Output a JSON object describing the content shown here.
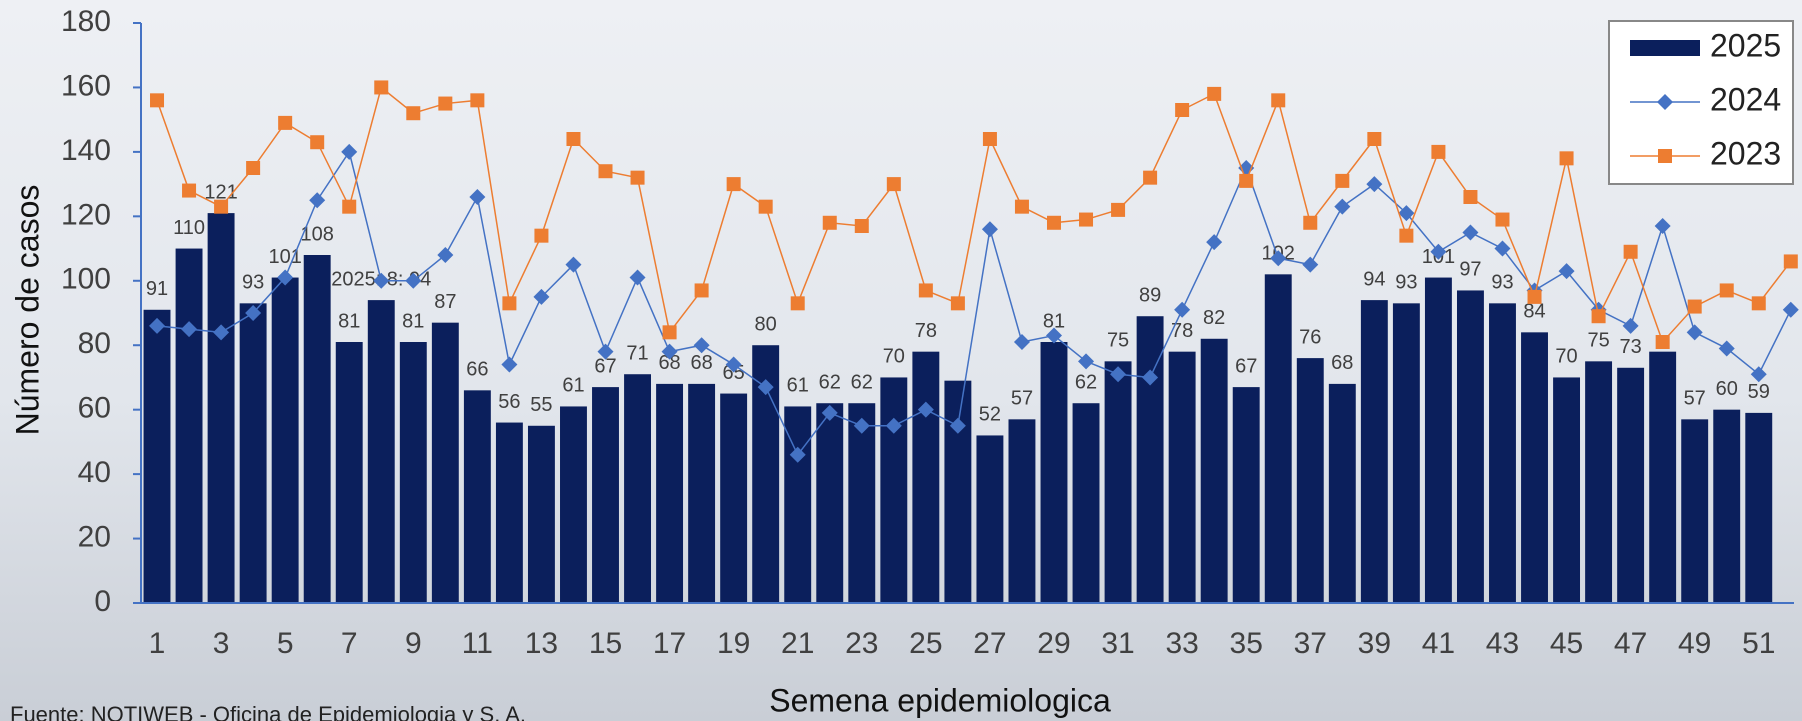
{
  "chart_data": {
    "type": "bar",
    "x_label": "Semena epidemiologica",
    "y_label": "Número de casos",
    "source": "Fuente: NOTIWEB - Oficina de Epidemiologia y S. A.",
    "x": [
      1,
      2,
      3,
      4,
      5,
      6,
      7,
      8,
      9,
      10,
      11,
      12,
      13,
      14,
      15,
      16,
      17,
      18,
      19,
      20,
      21,
      22,
      23,
      24,
      25,
      26,
      27,
      28,
      29,
      30,
      31,
      32,
      33,
      34,
      35,
      36,
      37,
      38,
      39,
      40,
      41,
      42,
      43,
      44,
      45,
      46,
      47,
      48,
      49,
      50,
      51,
      52
    ],
    "xlim": [
      0.5,
      52.1
    ],
    "xticks": [
      1,
      3,
      5,
      7,
      9,
      11,
      13,
      15,
      17,
      19,
      21,
      23,
      25,
      27,
      29,
      31,
      33,
      35,
      37,
      39,
      41,
      43,
      45,
      47,
      49,
      51
    ],
    "ylim": [
      0,
      180
    ],
    "yticks": [
      0,
      20,
      40,
      60,
      80,
      100,
      120,
      140,
      160,
      180
    ],
    "grid": false,
    "legend": "top-right",
    "series": [
      {
        "name": "2025",
        "type": "bar",
        "color": "#0b1f5c",
        "values": [
          91,
          110,
          121,
          93,
          101,
          108,
          81,
          94,
          81,
          87,
          66,
          56,
          55,
          61,
          67,
          71,
          68,
          68,
          65,
          80,
          61,
          62,
          62,
          70,
          78,
          69,
          52,
          57,
          81,
          62,
          75,
          89,
          78,
          82,
          67,
          102,
          76,
          68,
          94,
          93,
          101,
          97,
          93,
          84,
          70,
          75,
          73,
          78,
          57,
          60,
          59,
          null
        ],
        "value_labels": [
          "91",
          "110",
          "121",
          "93",
          "101",
          "108",
          "81",
          "2025: 8: 94",
          "81",
          "87",
          "66",
          "56",
          "55",
          "61",
          "67",
          "71",
          "68",
          "68",
          "65",
          "80",
          "61",
          "62",
          "62",
          "70",
          "78",
          null,
          "52",
          "57",
          "81",
          "62",
          "75",
          "89",
          "78",
          "82",
          "67",
          "102",
          "76",
          "68",
          "94",
          "93",
          "101",
          "97",
          "93",
          "84",
          "70",
          "75",
          "73",
          null,
          "57",
          "60",
          "59",
          null
        ]
      },
      {
        "name": "2024",
        "type": "line",
        "color": "#4472c4",
        "marker": "diamond",
        "values": [
          86,
          85,
          84,
          90,
          101,
          125,
          140,
          100,
          100,
          108,
          126,
          74,
          95,
          105,
          78,
          101,
          78,
          80,
          74,
          67,
          46,
          59,
          55,
          55,
          60,
          55,
          116,
          81,
          83,
          75,
          71,
          70,
          91,
          112,
          135,
          107,
          105,
          123,
          130,
          121,
          109,
          115,
          110,
          97,
          103,
          91,
          86,
          117,
          84,
          79,
          71,
          91
        ]
      },
      {
        "name": "2023",
        "type": "line",
        "color": "#ed7d31",
        "marker": "square",
        "values": [
          156,
          128,
          123,
          135,
          149,
          143,
          123,
          160,
          152,
          155,
          156,
          93,
          114,
          144,
          134,
          132,
          84,
          97,
          130,
          123,
          93,
          118,
          117,
          130,
          97,
          93,
          144,
          123,
          118,
          119,
          122,
          132,
          153,
          158,
          131,
          156,
          118,
          131,
          144,
          114,
          140,
          126,
          119,
          95,
          138,
          89,
          109,
          81,
          92,
          97,
          93,
          106
        ]
      }
    ]
  }
}
